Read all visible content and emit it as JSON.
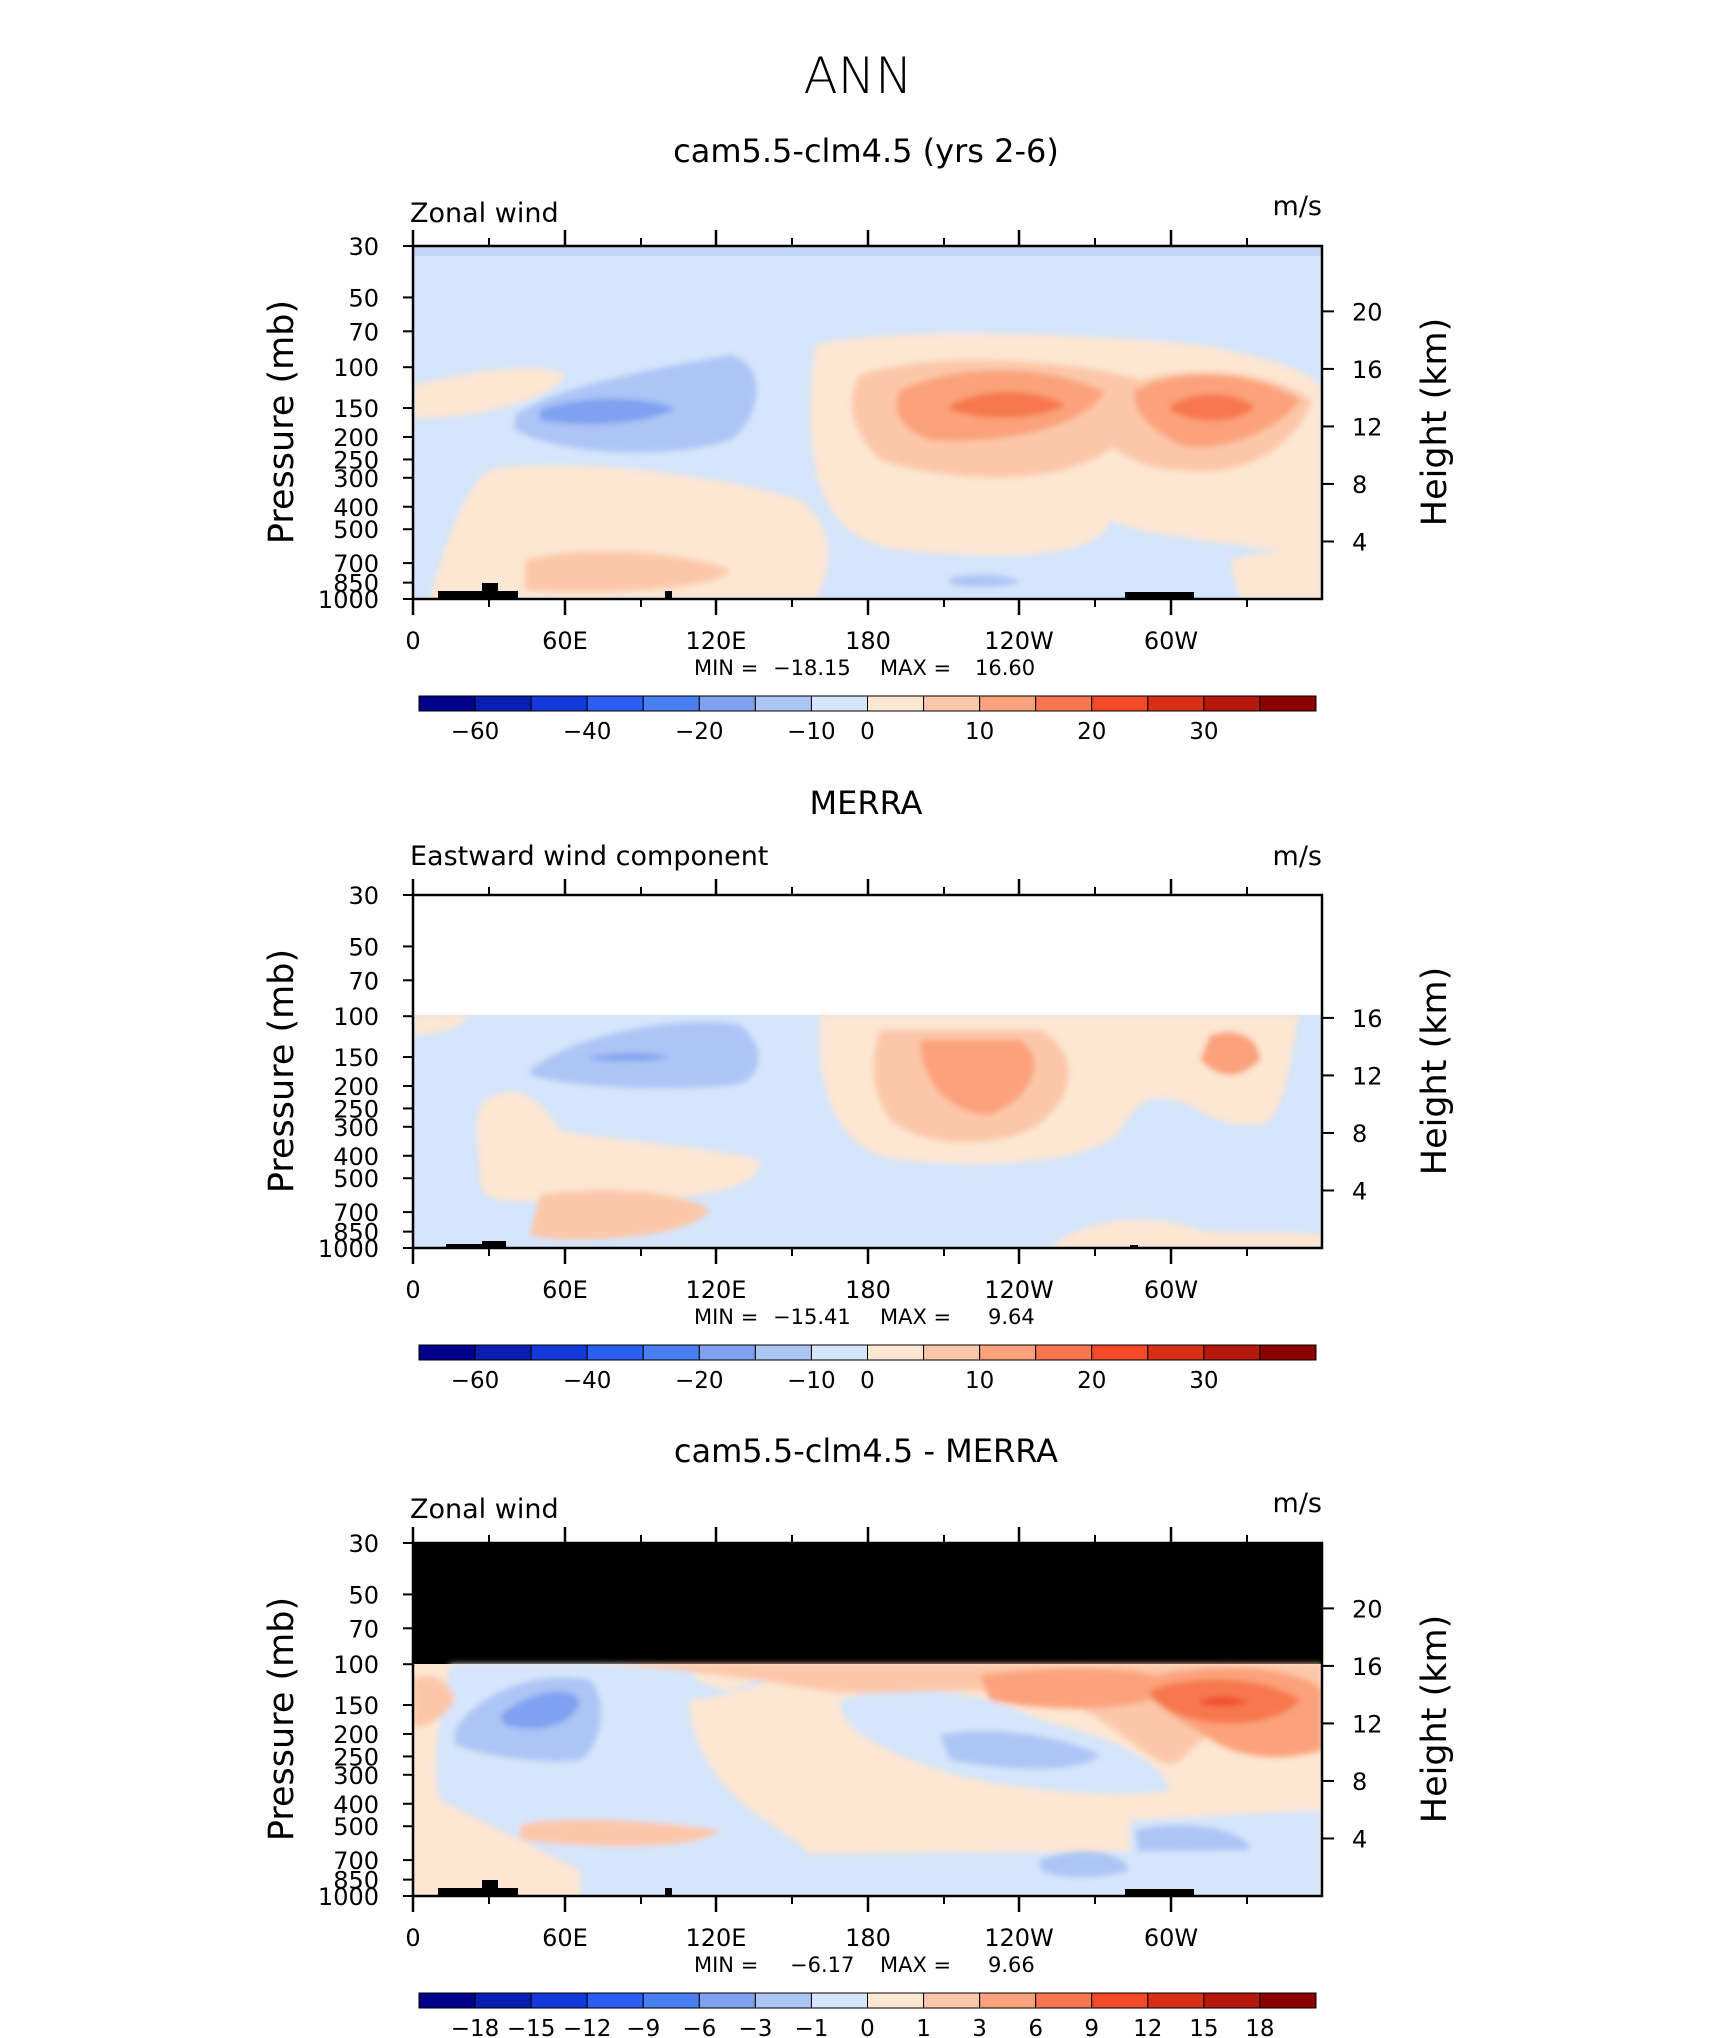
{
  "figure_title": "ANN",
  "colors": {
    "top_bg": "#9ec0ff",
    "band_upper": "#d5e5fb",
    "band_lower": "#c2d7f5",
    "blank": "#ffffff",
    "land": "#000000"
  },
  "chart_data": [
    {
      "type": "contour",
      "title": "cam5.5-clm4.5 (yrs 2-6)",
      "left_label": "Zonal wind",
      "units": "m/s",
      "ylabel": "Pressure (mb)",
      "ylabel_right": "Height (km)",
      "yticks": [
        "30",
        "50",
        "70",
        "100",
        "150",
        "200",
        "250",
        "300",
        "400",
        "500",
        "700",
        "850",
        "1000"
      ],
      "yticks_right": [
        "20",
        "16",
        "12",
        "8",
        "4"
      ],
      "xticks": [
        "0",
        "60E",
        "120E",
        "180",
        "120W",
        "60W"
      ],
      "stats": {
        "min_label": "MIN =",
        "min": "−18.15",
        "max_label": "MAX =",
        "max": "16.60"
      },
      "colorbar": [
        "−60",
        "−40",
        "−20",
        "−10",
        "0",
        "10",
        "20",
        "30"
      ],
      "top_cutoff_mb": null,
      "top_fill": "light",
      "values_min": -18.15,
      "values_max": 16.6
    },
    {
      "type": "contour",
      "title": "MERRA",
      "left_label": "Eastward wind component",
      "units": "m/s",
      "ylabel": "Pressure (mb)",
      "ylabel_right": "Height (km)",
      "yticks": [
        "30",
        "50",
        "70",
        "100",
        "150",
        "200",
        "250",
        "300",
        "400",
        "500",
        "700",
        "850",
        "1000"
      ],
      "yticks_right": [
        "16",
        "12",
        "8",
        "4"
      ],
      "xticks": [
        "0",
        "60E",
        "120E",
        "180",
        "120W",
        "60W"
      ],
      "stats": {
        "min_label": "MIN =",
        "min": "−15.41",
        "max_label": "MAX =",
        "max": "9.64"
      },
      "colorbar": [
        "−60",
        "−40",
        "−20",
        "−10",
        "0",
        "10",
        "20",
        "30"
      ],
      "top_cutoff_mb": 100,
      "top_fill": "blank",
      "values_min": -15.41,
      "values_max": 9.64
    },
    {
      "type": "contour",
      "title": "cam5.5-clm4.5 - MERRA",
      "left_label": "Zonal wind",
      "units": "m/s",
      "ylabel": "Pressure (mb)",
      "ylabel_right": "Height (km)",
      "yticks": [
        "30",
        "50",
        "70",
        "100",
        "150",
        "200",
        "250",
        "300",
        "400",
        "500",
        "700",
        "850",
        "1000"
      ],
      "yticks_right": [
        "20",
        "16",
        "12",
        "8",
        "4"
      ],
      "xticks": [
        "0",
        "60E",
        "120E",
        "180",
        "120W",
        "60W"
      ],
      "stats": {
        "min_label": "MIN =",
        "min": "−6.17",
        "max_label": "MAX =",
        "max": "9.66"
      },
      "colorbar": [
        "−18",
        "−15",
        "−12",
        "−9",
        "−6",
        "−3",
        "−1",
        "0",
        "1",
        "3",
        "6",
        "9",
        "12",
        "15",
        "18"
      ],
      "top_cutoff_mb": 100,
      "top_fill": "black",
      "values_min": -6.17,
      "values_max": 9.66
    }
  ],
  "colormap": [
    "#00008b",
    "#0a1fb0",
    "#1339d8",
    "#2a5ef2",
    "#4a7fef",
    "#7ea1f0",
    "#adc5f5",
    "#d5e5fb",
    "#fde6d2",
    "#fcc7a9",
    "#fba27c",
    "#f7784e",
    "#f2492a",
    "#d82f16",
    "#b7180e",
    "#8b0000"
  ]
}
